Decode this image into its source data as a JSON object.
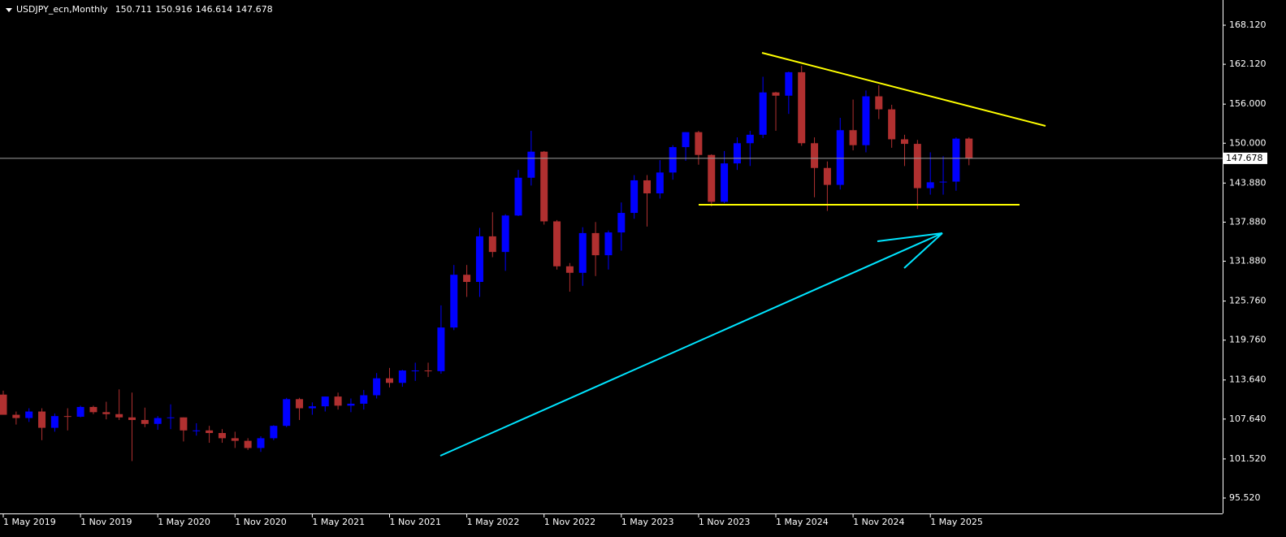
{
  "chart_data": {
    "type": "candlestick",
    "title": "USDJPY_ecn,Monthly",
    "x": [
      "2019-05-01",
      "2019-06-01",
      "2019-07-01",
      "2019-08-01",
      "2019-09-01",
      "2019-10-01",
      "2019-11-01",
      "2019-12-01",
      "2020-01-01",
      "2020-02-01",
      "2020-03-01",
      "2020-04-01",
      "2020-05-01",
      "2020-06-01",
      "2020-07-01",
      "2020-08-01",
      "2020-09-01",
      "2020-10-01",
      "2020-11-01",
      "2020-12-01",
      "2021-01-01",
      "2021-02-01",
      "2021-03-01",
      "2021-04-01",
      "2021-05-01",
      "2021-06-01",
      "2021-07-01",
      "2021-08-01",
      "2021-09-01",
      "2021-10-01",
      "2021-11-01",
      "2021-12-01",
      "2022-01-01",
      "2022-02-01",
      "2022-03-01",
      "2022-04-01",
      "2022-05-01",
      "2022-06-01",
      "2022-07-01",
      "2022-08-01",
      "2022-09-01",
      "2022-10-01",
      "2022-11-01",
      "2022-12-01",
      "2023-01-01",
      "2023-02-01",
      "2023-03-01",
      "2023-04-01",
      "2023-05-01",
      "2023-06-01",
      "2023-07-01",
      "2023-08-01",
      "2023-09-01",
      "2023-10-01",
      "2023-11-01",
      "2023-12-01",
      "2024-01-01",
      "2024-02-01",
      "2024-03-01",
      "2024-04-01",
      "2024-05-01",
      "2024-06-01",
      "2024-07-01",
      "2024-08-01",
      "2024-09-01",
      "2024-10-01",
      "2024-11-01",
      "2024-12-01",
      "2025-01-01",
      "2025-02-01",
      "2025-03-01",
      "2025-04-01",
      "2025-05-01",
      "2025-06-01",
      "2025-07-01",
      "2025-08-01"
    ],
    "open": [
      111.4,
      108.3,
      107.8,
      108.8,
      106.3,
      108.1,
      108.0,
      109.5,
      108.7,
      108.4,
      107.9,
      107.5,
      106.9,
      107.8,
      107.9,
      105.9,
      105.9,
      105.5,
      104.7,
      104.3,
      103.2,
      104.7,
      106.6,
      110.7,
      109.3,
      109.6,
      111.1,
      109.7,
      110.0,
      111.3,
      113.9,
      113.2,
      115.1,
      115.1,
      115.0,
      121.7,
      129.8,
      128.7,
      135.7,
      133.3,
      138.9,
      144.7,
      148.7,
      138.0,
      131.1,
      130.1,
      136.2,
      132.8,
      136.3,
      139.3,
      144.3,
      142.3,
      145.5,
      149.4,
      151.7,
      148.2,
      141.0,
      146.9,
      150.0,
      151.3,
      157.8,
      157.3,
      160.9,
      150.0,
      146.2,
      143.6,
      152.0,
      149.7,
      157.2,
      155.2,
      150.6,
      149.9,
      143.1,
      144.0,
      144.1,
      150.711
    ],
    "high": [
      112.0,
      108.8,
      109.3,
      109.3,
      108.5,
      109.3,
      109.7,
      109.7,
      110.3,
      112.2,
      111.7,
      109.4,
      108.1,
      109.9,
      107.9,
      107.0,
      106.6,
      106.1,
      105.7,
      104.7,
      105.0,
      106.7,
      110.9,
      110.9,
      110.2,
      111.1,
      111.7,
      110.8,
      112.1,
      114.7,
      115.5,
      115.2,
      116.3,
      116.3,
      125.1,
      131.3,
      131.3,
      137.0,
      139.4,
      139.1,
      145.9,
      151.9,
      148.8,
      138.2,
      131.6,
      137.1,
      137.9,
      136.6,
      140.9,
      145.1,
      145.1,
      147.4,
      149.7,
      151.7,
      151.9,
      148.3,
      148.8,
      150.9,
      151.9,
      160.2,
      157.9,
      161.0,
      161.9,
      150.9,
      147.2,
      153.9,
      156.7,
      158.1,
      158.9,
      155.9,
      151.3,
      150.5,
      148.6,
      148.0,
      150.9,
      150.916
    ],
    "low": [
      108.3,
      106.8,
      107.2,
      104.4,
      105.7,
      105.9,
      107.9,
      108.4,
      107.6,
      107.5,
      101.2,
      106.4,
      106.0,
      106.1,
      104.2,
      105.1,
      104.0,
      104.0,
      103.2,
      102.9,
      102.6,
      104.4,
      106.4,
      107.5,
      108.3,
      108.8,
      109.1,
      108.7,
      109.1,
      110.8,
      112.5,
      112.6,
      113.5,
      114.1,
      114.6,
      121.3,
      126.4,
      126.4,
      132.5,
      130.4,
      138.8,
      143.5,
      137.5,
      130.6,
      127.2,
      128.1,
      129.6,
      130.6,
      133.5,
      138.4,
      137.2,
      141.5,
      144.4,
      147.3,
      146.7,
      140.3,
      140.8,
      145.9,
      146.5,
      150.8,
      151.9,
      154.5,
      149.6,
      141.7,
      139.6,
      142.9,
      148.9,
      148.6,
      153.7,
      149.3,
      146.5,
      139.9,
      142.1,
      142.1,
      142.7,
      146.614
    ],
    "close": [
      108.3,
      107.8,
      108.8,
      106.3,
      108.1,
      108.0,
      109.5,
      108.7,
      108.4,
      107.9,
      107.5,
      106.9,
      107.8,
      107.9,
      105.9,
      105.9,
      105.5,
      104.7,
      104.3,
      103.2,
      104.7,
      106.6,
      110.7,
      109.3,
      109.6,
      111.1,
      109.7,
      110.0,
      111.3,
      113.9,
      113.2,
      115.1,
      115.1,
      115.0,
      121.7,
      129.8,
      128.7,
      135.7,
      133.3,
      138.9,
      144.7,
      148.7,
      138.0,
      131.1,
      130.1,
      136.2,
      132.8,
      136.3,
      139.3,
      144.3,
      142.3,
      145.5,
      149.4,
      151.7,
      148.2,
      141.0,
      146.9,
      150.0,
      151.3,
      157.8,
      157.3,
      160.9,
      150.0,
      146.2,
      143.6,
      152.0,
      149.7,
      157.2,
      155.2,
      150.6,
      149.9,
      143.1,
      144.0,
      144.1,
      150.7,
      147.678
    ],
    "up_color": "#0000ff",
    "down_color": "#b03030",
    "ylim": [
      93.15,
      171.99
    ],
    "yticks": [
      {
        "value": 168.12,
        "label": "168.120"
      },
      {
        "value": 162.12,
        "label": "162.120"
      },
      {
        "value": 156.0,
        "label": "156.000"
      },
      {
        "value": 150.0,
        "label": "150.000"
      },
      {
        "value": 143.88,
        "label": "143.880"
      },
      {
        "value": 137.88,
        "label": "137.880"
      },
      {
        "value": 131.88,
        "label": "131.880"
      },
      {
        "value": 125.76,
        "label": "125.760"
      },
      {
        "value": 119.76,
        "label": "119.760"
      },
      {
        "value": 113.64,
        "label": "113.640"
      },
      {
        "value": 107.64,
        "label": "107.640"
      },
      {
        "value": 101.52,
        "label": "101.520"
      },
      {
        "value": 95.52,
        "label": "95.520"
      }
    ],
    "xticks": [
      {
        "value": "2019-05-01",
        "label": "1 May 2019"
      },
      {
        "value": "2019-11-01",
        "label": "1 Nov 2019"
      },
      {
        "value": "2020-05-01",
        "label": "1 May 2020"
      },
      {
        "value": "2020-11-01",
        "label": "1 Nov 2020"
      },
      {
        "value": "2021-05-01",
        "label": "1 May 2021"
      },
      {
        "value": "2021-11-01",
        "label": "1 Nov 2021"
      },
      {
        "value": "2022-05-01",
        "label": "1 May 2022"
      },
      {
        "value": "2022-11-01",
        "label": "1 Nov 2022"
      },
      {
        "value": "2023-05-01",
        "label": "1 May 2023"
      },
      {
        "value": "2023-11-01",
        "label": "1 Nov 2023"
      },
      {
        "value": "2024-05-01",
        "label": "1 May 2024"
      },
      {
        "value": "2024-11-01",
        "label": "1 Nov 2024"
      },
      {
        "value": "2025-05-01",
        "label": "1 May 2025"
      }
    ]
  }
}
